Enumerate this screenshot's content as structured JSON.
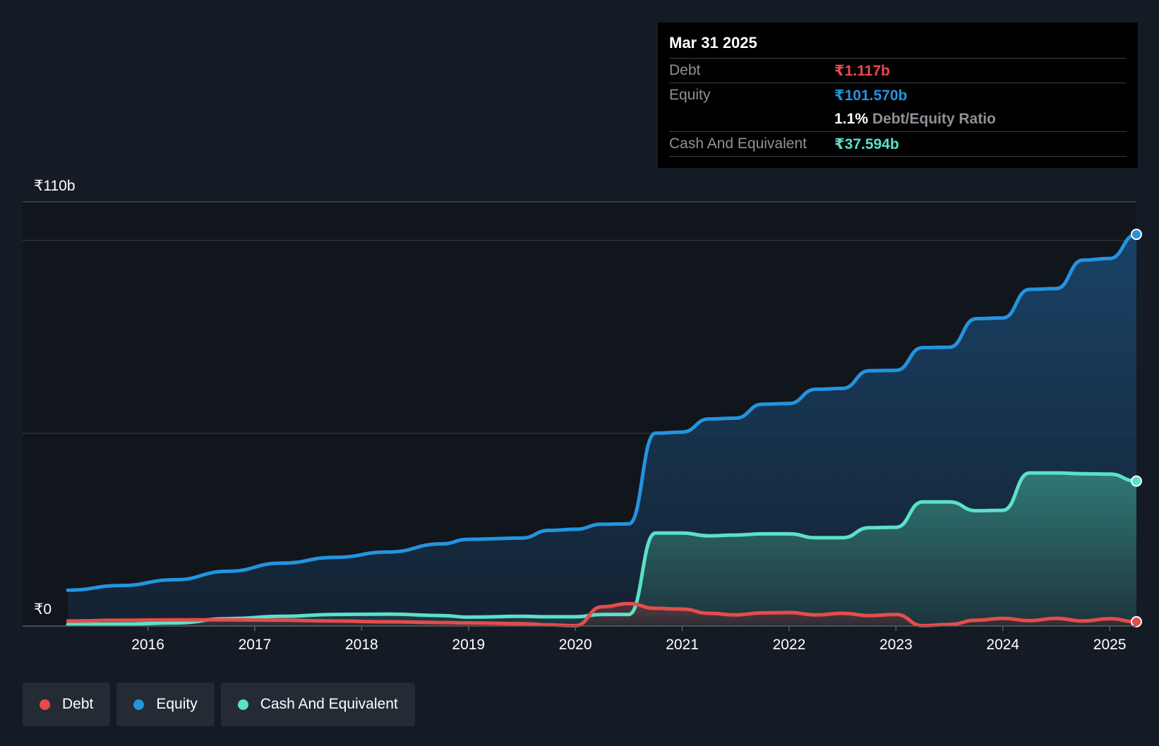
{
  "chart_data": {
    "type": "area",
    "title": "",
    "xlabel": "",
    "ylabel": "",
    "currency": "₹",
    "y_top_label": "₹110b",
    "y_bottom_label": "₹0",
    "ylim": [
      0,
      110
    ],
    "xlim": [
      2015.25,
      2025.25
    ],
    "x_ticks": [
      {
        "label": "2016",
        "value": 2016
      },
      {
        "label": "2017",
        "value": 2017
      },
      {
        "label": "2018",
        "value": 2018
      },
      {
        "label": "2019",
        "value": 2019
      },
      {
        "label": "2020",
        "value": 2020
      },
      {
        "label": "2021",
        "value": 2021
      },
      {
        "label": "2022",
        "value": 2022
      },
      {
        "label": "2023",
        "value": 2023
      },
      {
        "label": "2024",
        "value": 2024
      },
      {
        "label": "2025",
        "value": 2025
      }
    ],
    "gridlines": [
      50,
      100
    ],
    "series": [
      {
        "name": "Equity",
        "color": "#2394df",
        "x": [
          2015.25,
          2015.75,
          2016.25,
          2016.75,
          2017.25,
          2017.75,
          2018.25,
          2018.75,
          2019.0,
          2019.5,
          2019.75,
          2020.0,
          2020.25,
          2020.5,
          2020.75,
          2021.0,
          2021.25,
          2021.5,
          2021.75,
          2022.0,
          2022.25,
          2022.5,
          2022.75,
          2023.0,
          2023.25,
          2023.5,
          2023.75,
          2024.0,
          2024.25,
          2024.5,
          2024.75,
          2025.0,
          2025.25
        ],
        "values": [
          9.3,
          10.5,
          12.0,
          14.2,
          16.3,
          17.8,
          19.2,
          21.3,
          22.5,
          22.8,
          24.8,
          25.1,
          26.4,
          26.5,
          50.0,
          50.3,
          53.7,
          53.9,
          57.5,
          57.7,
          61.4,
          61.6,
          66.2,
          66.3,
          72.2,
          72.3,
          79.7,
          79.9,
          87.3,
          87.5,
          94.9,
          95.3,
          101.57
        ]
      },
      {
        "name": "Cash And Equivalent",
        "color": "#5ce0c9",
        "x": [
          2015.25,
          2015.75,
          2016.25,
          2016.75,
          2017.25,
          2017.75,
          2018.25,
          2018.75,
          2019.0,
          2019.5,
          2019.75,
          2020.0,
          2020.25,
          2020.5,
          2020.75,
          2021.0,
          2021.25,
          2021.5,
          2021.75,
          2022.0,
          2022.25,
          2022.5,
          2022.75,
          2023.0,
          2023.25,
          2023.5,
          2023.75,
          2024.0,
          2024.25,
          2024.5,
          2024.75,
          2025.0,
          2025.25
        ],
        "values": [
          0.4,
          0.5,
          0.8,
          1.9,
          2.5,
          3.0,
          3.1,
          2.7,
          2.3,
          2.5,
          2.4,
          2.4,
          3.0,
          3.0,
          24.1,
          24.1,
          23.4,
          23.6,
          23.9,
          23.9,
          22.9,
          22.9,
          25.5,
          25.6,
          32.2,
          32.2,
          29.9,
          30.0,
          39.7,
          39.7,
          39.5,
          39.4,
          37.594
        ]
      },
      {
        "name": "Debt",
        "color": "#e64c4c",
        "x": [
          2015.25,
          2015.75,
          2016.25,
          2016.75,
          2017.25,
          2017.75,
          2018.25,
          2018.75,
          2019.0,
          2019.5,
          2019.75,
          2020.0,
          2020.25,
          2020.5,
          2020.75,
          2021.0,
          2021.25,
          2021.5,
          2021.75,
          2022.0,
          2022.25,
          2022.5,
          2022.75,
          2023.0,
          2023.25,
          2023.5,
          2023.75,
          2024.0,
          2024.25,
          2024.5,
          2024.75,
          2025.0,
          2025.25
        ],
        "values": [
          1.3,
          1.5,
          1.6,
          1.6,
          1.5,
          1.3,
          1.1,
          0.9,
          0.8,
          0.6,
          0.3,
          0.1,
          5.0,
          5.8,
          4.6,
          4.4,
          3.3,
          2.9,
          3.4,
          3.5,
          2.9,
          3.3,
          2.7,
          3.0,
          0.1,
          0.4,
          1.5,
          2.0,
          1.4,
          2.0,
          1.3,
          1.9,
          1.117
        ]
      }
    ],
    "legend": {
      "position": "bottom-left",
      "entries": [
        {
          "label": "Debt",
          "color": "#e64c4c"
        },
        {
          "label": "Equity",
          "color": "#2394df"
        },
        {
          "label": "Cash And Equivalent",
          "color": "#5ce0c9"
        }
      ]
    },
    "tooltip": {
      "date": "Mar 31 2025",
      "debt_label": "Debt",
      "debt_value": "₹1.117b",
      "equity_label": "Equity",
      "equity_value": "₹101.570b",
      "ratio_value": "1.1%",
      "ratio_label": "Debt/Equity Ratio",
      "cash_label": "Cash And Equivalent",
      "cash_value": "₹37.594b"
    }
  },
  "colors": {
    "background": "#151b24",
    "plot_background": "#11151c",
    "debt": "#e64c4c",
    "equity": "#2394df",
    "cash": "#5ce0c9"
  }
}
